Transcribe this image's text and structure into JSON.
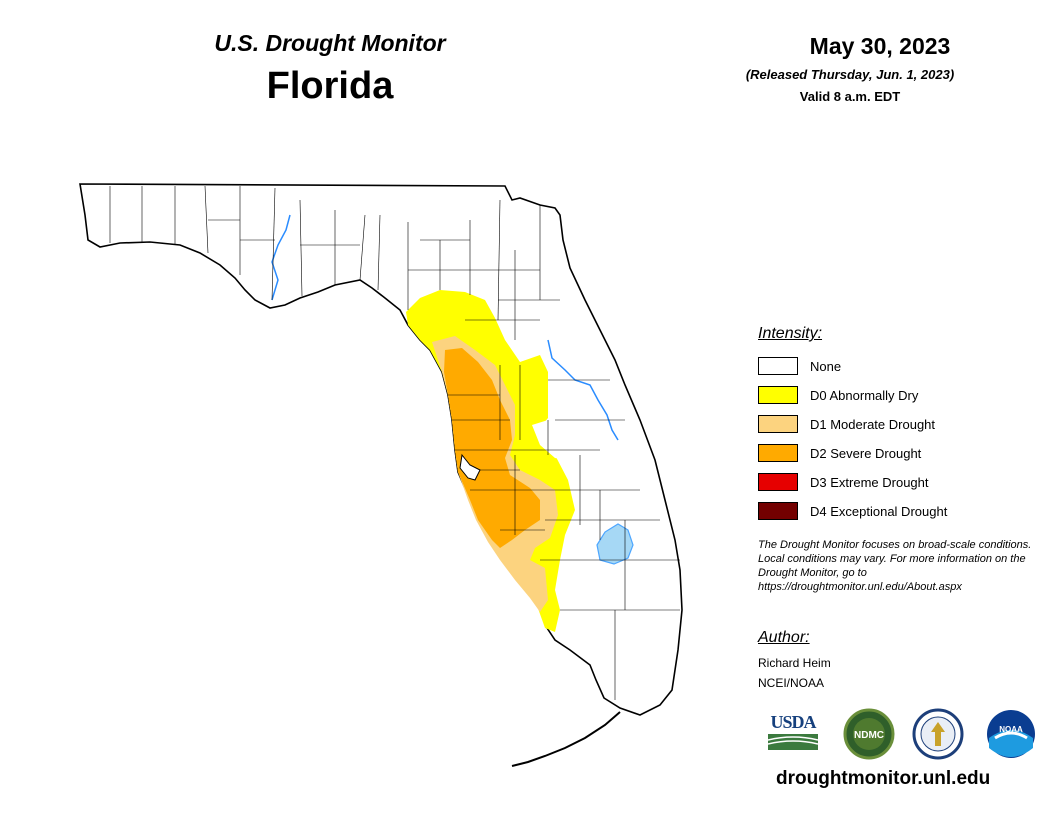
{
  "header": {
    "subtitle": "U.S. Drought Monitor",
    "state": "Florida",
    "date": "May 30, 2023",
    "released": "(Released Thursday, Jun. 1, 2023)",
    "valid": "Valid 8 a.m. EDT"
  },
  "legend": {
    "title": "Intensity:",
    "items": [
      {
        "label": "None",
        "color": "#ffffff"
      },
      {
        "label": "D0 Abnormally Dry",
        "color": "#ffff00"
      },
      {
        "label": "D1 Moderate Drought",
        "color": "#fcd37f"
      },
      {
        "label": "D2 Severe Drought",
        "color": "#ffaa00"
      },
      {
        "label": "D3 Extreme Drought",
        "color": "#e60000"
      },
      {
        "label": "D4 Exceptional Drought",
        "color": "#730000"
      }
    ]
  },
  "disclaimer": "The Drought Monitor focuses on broad-scale conditions. Local conditions may vary. For more information on the Drought Monitor, go to https://droughtmonitor.unl.edu/About.aspx",
  "author": {
    "title": "Author:",
    "name": "Richard Heim",
    "org": "NCEI/NOAA"
  },
  "logos": {
    "usda": "USDA",
    "ndmc": "NDMC",
    "noaa": "NOAA"
  },
  "footer_url": "droughtmonitor.unl.edu",
  "map_colors": {
    "water": "#4da6ff",
    "lake": "#a6d8f5"
  }
}
